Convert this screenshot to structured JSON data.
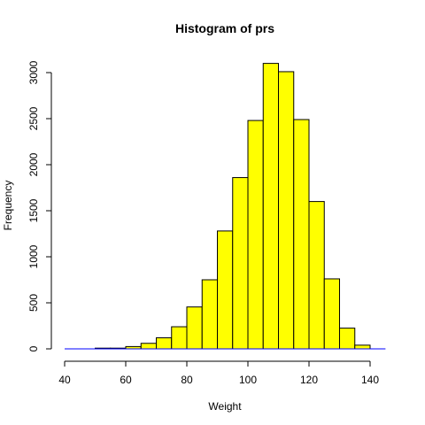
{
  "chart_data": {
    "type": "bar",
    "title": "Histogram of prs",
    "xlabel": "Weight",
    "ylabel": "Frequency",
    "bins": [
      {
        "from": 40,
        "to": 45,
        "value": 0
      },
      {
        "from": 45,
        "to": 50,
        "value": 0
      },
      {
        "from": 50,
        "to": 55,
        "value": 3
      },
      {
        "from": 55,
        "to": 60,
        "value": 5
      },
      {
        "from": 60,
        "to": 65,
        "value": 25
      },
      {
        "from": 65,
        "to": 70,
        "value": 60
      },
      {
        "from": 70,
        "to": 75,
        "value": 120
      },
      {
        "from": 75,
        "to": 80,
        "value": 240
      },
      {
        "from": 80,
        "to": 85,
        "value": 455
      },
      {
        "from": 85,
        "to": 90,
        "value": 750
      },
      {
        "from": 90,
        "to": 95,
        "value": 1280
      },
      {
        "from": 95,
        "to": 100,
        "value": 1860
      },
      {
        "from": 100,
        "to": 105,
        "value": 2480
      },
      {
        "from": 105,
        "to": 110,
        "value": 3100
      },
      {
        "from": 110,
        "to": 115,
        "value": 3010
      },
      {
        "from": 115,
        "to": 120,
        "value": 2490
      },
      {
        "from": 120,
        "to": 125,
        "value": 1600
      },
      {
        "from": 125,
        "to": 130,
        "value": 760
      },
      {
        "from": 130,
        "to": 135,
        "value": 225
      },
      {
        "from": 135,
        "to": 140,
        "value": 40
      },
      {
        "from": 140,
        "to": 145,
        "value": 0
      }
    ],
    "xticks": [
      {
        "value": 40,
        "label": "40"
      },
      {
        "value": 60,
        "label": "60"
      },
      {
        "value": 80,
        "label": "80"
      },
      {
        "value": 100,
        "label": "100"
      },
      {
        "value": 120,
        "label": "120"
      },
      {
        "value": 140,
        "label": "140"
      }
    ],
    "yticks": [
      {
        "value": 0,
        "label": "0"
      },
      {
        "value": 500,
        "label": "500"
      },
      {
        "value": 1000,
        "label": "1000"
      },
      {
        "value": 1500,
        "label": "1500"
      },
      {
        "value": 2000,
        "label": "2000"
      },
      {
        "value": 2500,
        "label": "2500"
      },
      {
        "value": 3000,
        "label": "3000"
      }
    ],
    "xlim": [
      40,
      145
    ],
    "ylim": [
      0,
      3000
    ],
    "bar_fill": "#ffff00",
    "bar_stroke": "#000000",
    "baseline_stroke": "#0000ff",
    "grid": false,
    "legend": "none"
  }
}
